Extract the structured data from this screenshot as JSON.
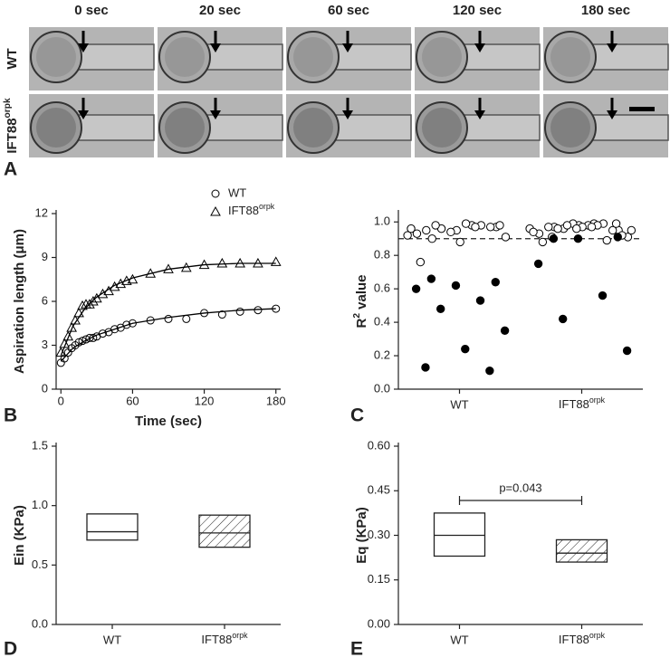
{
  "panel_a": {
    "panel": "A",
    "timepoints": [
      "0 sec",
      "20 sec",
      "60 sec",
      "120 sec",
      "180 sec"
    ],
    "rows": [
      "WT",
      {
        "text": "IFT88",
        "sup": "orpk"
      }
    ]
  },
  "chart_data": [
    {
      "type": "line",
      "panel": "B",
      "xlabel": "Time (sec)",
      "ylabel": "Aspiration length (μm)",
      "xlim": [
        -4,
        184
      ],
      "ylim": [
        0,
        12
      ],
      "xticks": [
        0,
        60,
        120,
        180
      ],
      "yticks": [
        0,
        3,
        6,
        9,
        12
      ],
      "legend": "upper right",
      "series": [
        {
          "name": "WT",
          "marker": "circle",
          "color": "#000000",
          "x": [
            0,
            3,
            6,
            9,
            12,
            15,
            18,
            21,
            24,
            27,
            30,
            35,
            40,
            45,
            50,
            55,
            60,
            75,
            90,
            105,
            120,
            135,
            150,
            165,
            180
          ],
          "values": [
            1.8,
            2.1,
            2.5,
            2.8,
            3.0,
            3.2,
            3.3,
            3.4,
            3.5,
            3.5,
            3.6,
            3.8,
            3.9,
            4.1,
            4.2,
            4.4,
            4.5,
            4.7,
            4.8,
            4.8,
            5.2,
            5.1,
            5.3,
            5.4,
            5.5
          ],
          "fit": {
            "x": [
              0,
              10,
              20,
              30,
              45,
              60,
              90,
              120,
              150,
              180
            ],
            "values": [
              1.9,
              2.8,
              3.3,
              3.7,
              4.1,
              4.5,
              4.9,
              5.2,
              5.4,
              5.5
            ]
          }
        },
        {
          "name": {
            "text": "IFT88",
            "sup": "orpk"
          },
          "marker": "triangle",
          "color": "#000000",
          "x": [
            0,
            3,
            6,
            9,
            12,
            15,
            18,
            21,
            24,
            27,
            30,
            35,
            40,
            45,
            50,
            55,
            60,
            75,
            90,
            105,
            120,
            135,
            150,
            165,
            180
          ],
          "values": [
            2.5,
            3.1,
            3.6,
            4.2,
            4.7,
            5.2,
            5.7,
            5.8,
            5.8,
            6.0,
            6.2,
            6.5,
            6.7,
            7.0,
            7.2,
            7.4,
            7.5,
            7.9,
            8.2,
            8.3,
            8.5,
            8.6,
            8.6,
            8.6,
            8.7
          ],
          "fit": {
            "x": [
              0,
              10,
              20,
              30,
              45,
              60,
              90,
              120,
              150,
              180
            ],
            "values": [
              2.3,
              4.3,
              5.5,
              6.3,
              7.1,
              7.6,
              8.2,
              8.5,
              8.6,
              8.6
            ]
          }
        }
      ]
    },
    {
      "type": "strip",
      "panel": "C",
      "ylabel": {
        "text": "R",
        "sup": "2",
        "after": " value"
      },
      "categories": [
        "WT",
        {
          "text": "IFT88",
          "sup": "orpk"
        }
      ],
      "ylim": [
        0,
        1.05
      ],
      "yticks": [
        {
          "value": 0,
          "label": "0.0"
        },
        0.2,
        0.4,
        0.6,
        0.8,
        {
          "value": 1,
          "label": "1.0"
        }
      ],
      "reference_line": 0.9,
      "series": [
        {
          "color": "#ffffff",
          "values": [
            [
              0.92,
              0.98,
              0.9,
              0.97,
              0.95,
              0.93,
              0.98,
              0.96,
              0.91,
              0.99,
              0.95,
              0.97,
              0.94,
              0.96,
              0.97,
              0.98,
              0.98,
              0.88,
              0.76
            ],
            [
              0.96,
              0.99,
              0.97,
              0.95,
              0.98,
              0.93,
              0.99,
              0.96,
              0.91,
              0.98,
              0.97,
              0.95,
              0.99,
              0.94,
              0.98,
              0.96,
              0.92,
              0.97,
              0.88,
              0.89,
              0.98,
              0.95,
              0.97,
              0.91,
              0.99,
              0.96
            ]
          ]
        },
        {
          "color": "#000000",
          "values": [
            [
              0.66,
              0.64,
              0.62,
              0.6,
              0.53,
              0.48,
              0.35,
              0.24,
              0.13,
              0.11
            ],
            [
              0.9,
              0.91,
              0.9,
              0.75,
              0.56,
              0.42,
              0.23
            ]
          ]
        }
      ]
    },
    {
      "type": "box",
      "panel": "D",
      "ylabel": "Ein (KPa)",
      "categories": [
        "WT",
        {
          "text": "IFT88",
          "sup": "orpk"
        }
      ],
      "ylim": [
        0,
        1.5
      ],
      "yticks": [
        {
          "value": 0,
          "label": "0.0"
        },
        0.5,
        {
          "value": 1,
          "label": "1.0"
        },
        1.5
      ],
      "boxes": [
        {
          "low": 0.71,
          "median": 0.78,
          "high": 0.93,
          "hatch": false
        },
        {
          "low": 0.65,
          "median": 0.77,
          "high": 0.92,
          "hatch": true
        }
      ]
    },
    {
      "type": "box",
      "panel": "E",
      "ylabel": "Eq (KPa)",
      "categories": [
        "WT",
        {
          "text": "IFT88",
          "sup": "orpk"
        }
      ],
      "ylim": [
        0,
        0.6
      ],
      "yticks": [
        {
          "value": 0,
          "label": "0.00"
        },
        0.15,
        {
          "value": 0.3,
          "label": "0.30"
        },
        0.45,
        {
          "value": 0.6,
          "label": "0.60"
        }
      ],
      "boxes": [
        {
          "low": 0.23,
          "median": 0.3,
          "high": 0.375,
          "hatch": false
        },
        {
          "low": 0.21,
          "median": 0.24,
          "high": 0.285,
          "hatch": true
        }
      ],
      "annotation": "p=0.043"
    }
  ]
}
